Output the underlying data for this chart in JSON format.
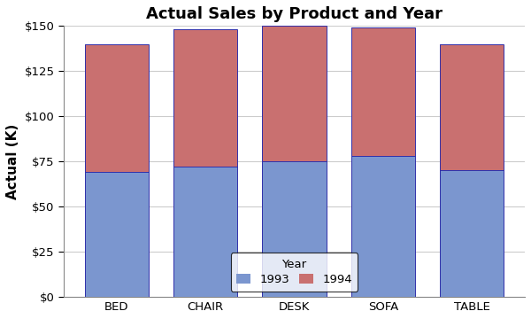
{
  "title": "Actual Sales by Product and Year",
  "ylabel": "Actual (K)",
  "categories": [
    "BED",
    "CHAIR",
    "DESK",
    "SOFA",
    "TABLE"
  ],
  "values_1993": [
    69,
    72,
    75,
    78,
    70
  ],
  "values_1994": [
    71,
    76,
    75,
    71,
    70
  ],
  "color_1993": "#7b96cf",
  "color_1994": "#c97070",
  "ylim": [
    0,
    150
  ],
  "yticks": [
    0,
    25,
    50,
    75,
    100,
    125,
    150
  ],
  "ytick_labels": [
    "$0",
    "$25",
    "$50",
    "$75",
    "$100",
    "$125",
    "$150"
  ],
  "bar_edgecolor": "#3030aa",
  "bar_linewidth": 0.7,
  "plot_bg": "#ffffff",
  "fig_bg": "#ffffff",
  "grid_color": "#cccccc",
  "legend_label_year": "Year",
  "legend_label_1993": "1993",
  "legend_label_1994": "1994",
  "title_fontsize": 13,
  "axis_label_fontsize": 11,
  "tick_fontsize": 9.5,
  "legend_fontsize": 9.5,
  "bar_width": 0.72
}
